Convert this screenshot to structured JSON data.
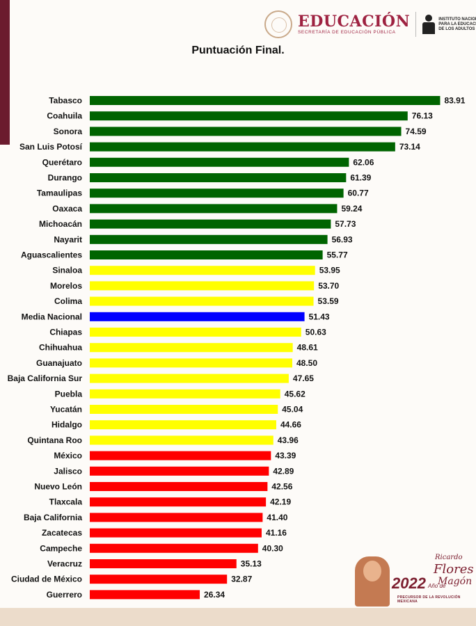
{
  "header": {
    "edu_title": "EDUCACIÓN",
    "edu_subtitle": "SECRETARÍA DE EDUCACIÓN PÚBLICA",
    "inea_text": "INSTITUTO NACIONAL PARA LA EDUCACIÓN DE LOS ADULTOS"
  },
  "logo": {
    "year": "2022",
    "anio": "Año de",
    "name_first": "Ricardo",
    "name_last1": "Flores",
    "name_last2": "Magón",
    "tagline": "PRECURSOR DE LA REVOLUCIÓN MEXICANA"
  },
  "colors": {
    "green": "#006400",
    "yellow": "#ffff00",
    "blue": "#0000ff",
    "red": "#ff0000"
  },
  "chart_data": {
    "type": "bar",
    "orientation": "horizontal",
    "title": "Puntuación Final.",
    "xlabel": "",
    "ylabel": "",
    "xlim": [
      0,
      100
    ],
    "grid": false,
    "categories": [
      "Tabasco",
      "Coahuila",
      "Sonora",
      "San Luis Potosí",
      "Querétaro",
      "Durango",
      "Tamaulipas",
      "Oaxaca",
      "Michoacán",
      "Nayarit",
      "Aguascalientes",
      "Sinaloa",
      "Morelos",
      "Colima",
      "Media Nacional",
      "Chiapas",
      "Chihuahua",
      "Guanajuato",
      "Baja California Sur",
      "Puebla",
      "Yucatán",
      "Hidalgo",
      "Quintana Roo",
      "México",
      "Jalisco",
      "Nuevo León",
      "Tlaxcala",
      "Baja California",
      "Zacatecas",
      "Campeche",
      "Veracruz",
      "Ciudad de México",
      "Guerrero"
    ],
    "values": [
      83.91,
      76.13,
      74.59,
      73.14,
      62.06,
      61.39,
      60.77,
      59.24,
      57.73,
      56.93,
      55.77,
      53.95,
      53.7,
      53.59,
      51.43,
      50.63,
      48.61,
      48.5,
      47.65,
      45.62,
      45.04,
      44.66,
      43.96,
      43.39,
      42.89,
      42.56,
      42.19,
      41.4,
      41.16,
      40.3,
      35.13,
      32.87,
      26.34
    ],
    "value_labels": [
      "83.91",
      "76.13",
      "74.59",
      "73.14",
      "62.06",
      "61.39",
      "60.77",
      "59.24",
      "57.73",
      "56.93",
      "55.77",
      "53.95",
      "53.70",
      "53.59",
      "51.43",
      "50.63",
      "48.61",
      "48.50",
      "47.65",
      "45.62",
      "45.04",
      "44.66",
      "43.96",
      "43.39",
      "42.89",
      "42.56",
      "42.19",
      "41.40",
      "41.16",
      "40.30",
      "35.13",
      "32.87",
      "26.34"
    ],
    "bar_colors": [
      "green",
      "green",
      "green",
      "green",
      "green",
      "green",
      "green",
      "green",
      "green",
      "green",
      "green",
      "yellow",
      "yellow",
      "yellow",
      "blue",
      "yellow",
      "yellow",
      "yellow",
      "yellow",
      "yellow",
      "yellow",
      "yellow",
      "yellow",
      "red",
      "red",
      "red",
      "red",
      "red",
      "red",
      "red",
      "red",
      "red",
      "red"
    ]
  }
}
